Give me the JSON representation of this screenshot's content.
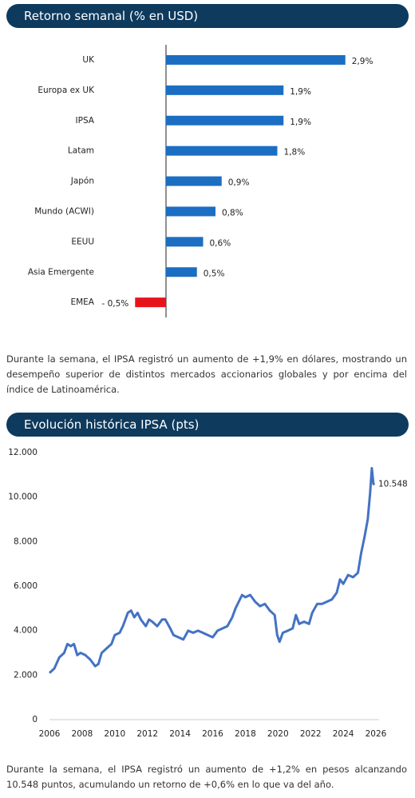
{
  "chart_data": [
    {
      "type": "bar",
      "orientation": "horizontal",
      "title": "Retorno semanal (% en USD)",
      "categories": [
        "UK",
        "Europa ex UK",
        "IPSA",
        "Latam",
        "Japón",
        "Mundo (ACWI)",
        "EEUU",
        "Asia Emergente",
        "EMEA"
      ],
      "values": [
        2.9,
        1.9,
        1.9,
        1.8,
        0.9,
        0.8,
        0.6,
        0.5,
        -0.5
      ],
      "value_labels": [
        "2,9%",
        "1,9%",
        "1,9%",
        "1,8%",
        "0,9%",
        "0,8%",
        "0,6%",
        "0,5%",
        "- 0,5%"
      ],
      "colors": [
        "#1b6ec2",
        "#1b6ec2",
        "#1b6ec2",
        "#1b6ec2",
        "#1b6ec2",
        "#1b6ec2",
        "#1b6ec2",
        "#1b6ec2",
        "#e8141b"
      ],
      "xlim": [
        -1.2,
        3.2
      ]
    },
    {
      "type": "line",
      "title": "Evolución histórica IPSA (pts)",
      "x": [
        2006.0,
        2006.3,
        2006.6,
        2006.9,
        2007.1,
        2007.3,
        2007.5,
        2007.7,
        2007.9,
        2008.2,
        2008.5,
        2008.8,
        2009.0,
        2009.2,
        2009.5,
        2009.8,
        2010.0,
        2010.3,
        2010.5,
        2010.8,
        2011.0,
        2011.2,
        2011.4,
        2011.6,
        2011.9,
        2012.1,
        2012.3,
        2012.6,
        2012.9,
        2013.1,
        2013.4,
        2013.6,
        2013.9,
        2014.2,
        2014.5,
        2014.8,
        2015.1,
        2015.4,
        2015.7,
        2016.0,
        2016.3,
        2016.6,
        2016.9,
        2017.2,
        2017.4,
        2017.6,
        2017.8,
        2018.0,
        2018.3,
        2018.6,
        2018.9,
        2019.2,
        2019.5,
        2019.8,
        2019.95,
        2020.1,
        2020.3,
        2020.6,
        2020.9,
        2021.1,
        2021.3,
        2021.6,
        2021.9,
        2022.1,
        2022.4,
        2022.7,
        2023.0,
        2023.3,
        2023.6,
        2023.8,
        2024.0,
        2024.3,
        2024.6,
        2024.9,
        2025.1,
        2025.3,
        2025.5,
        2025.65,
        2025.75,
        2025.85,
        2025.9
      ],
      "series": [
        {
          "name": "IPSA",
          "color": "#4472c4",
          "values": [
            2100,
            2300,
            2800,
            3000,
            3400,
            3300,
            3400,
            2900,
            3000,
            2900,
            2700,
            2400,
            2500,
            3000,
            3200,
            3400,
            3800,
            3900,
            4200,
            4800,
            4900,
            4600,
            4800,
            4500,
            4200,
            4500,
            4400,
            4200,
            4500,
            4500,
            4100,
            3800,
            3700,
            3600,
            4000,
            3900,
            4000,
            3900,
            3800,
            3700,
            4000,
            4100,
            4200,
            4600,
            5000,
            5300,
            5600,
            5500,
            5600,
            5300,
            5100,
            5200,
            4900,
            4700,
            3800,
            3500,
            3900,
            4000,
            4100,
            4700,
            4300,
            4400,
            4300,
            4800,
            5200,
            5200,
            5300,
            5400,
            5700,
            6300,
            6100,
            6500,
            6400,
            6600,
            7500,
            8200,
            9000,
            10200,
            11300,
            10600,
            10548
          ]
        }
      ],
      "last_label": "10.548",
      "xlim": [
        2006,
        2026
      ],
      "xticks": [
        2006,
        2008,
        2010,
        2012,
        2014,
        2016,
        2018,
        2020,
        2022,
        2024,
        2026
      ],
      "ylim": [
        0,
        12000
      ],
      "yticks": [
        0,
        {
          "value": 2000,
          "label": "2.000"
        },
        {
          "value": 4000,
          "label": "4.000"
        },
        {
          "value": 6000,
          "label": "6.000"
        },
        {
          "value": 8000,
          "label": "8.000"
        },
        {
          "value": 10000,
          "label": "10.000"
        },
        {
          "value": 12000,
          "label": "12.000"
        }
      ],
      "grid": false
    }
  ],
  "paragraphs": [
    "Durante la semana, el IPSA registró un aumento de +1,9% en dólares, mostrando un desempeño superior de distintos mercados accionarios globales y por encima del índice de Latinoamérica.",
    "Durante la semana, el IPSA registró un aumento de +1,2% en pesos alcanzando 10.548 puntos, acumulando un retorno de +0,6% en lo que va del año."
  ]
}
